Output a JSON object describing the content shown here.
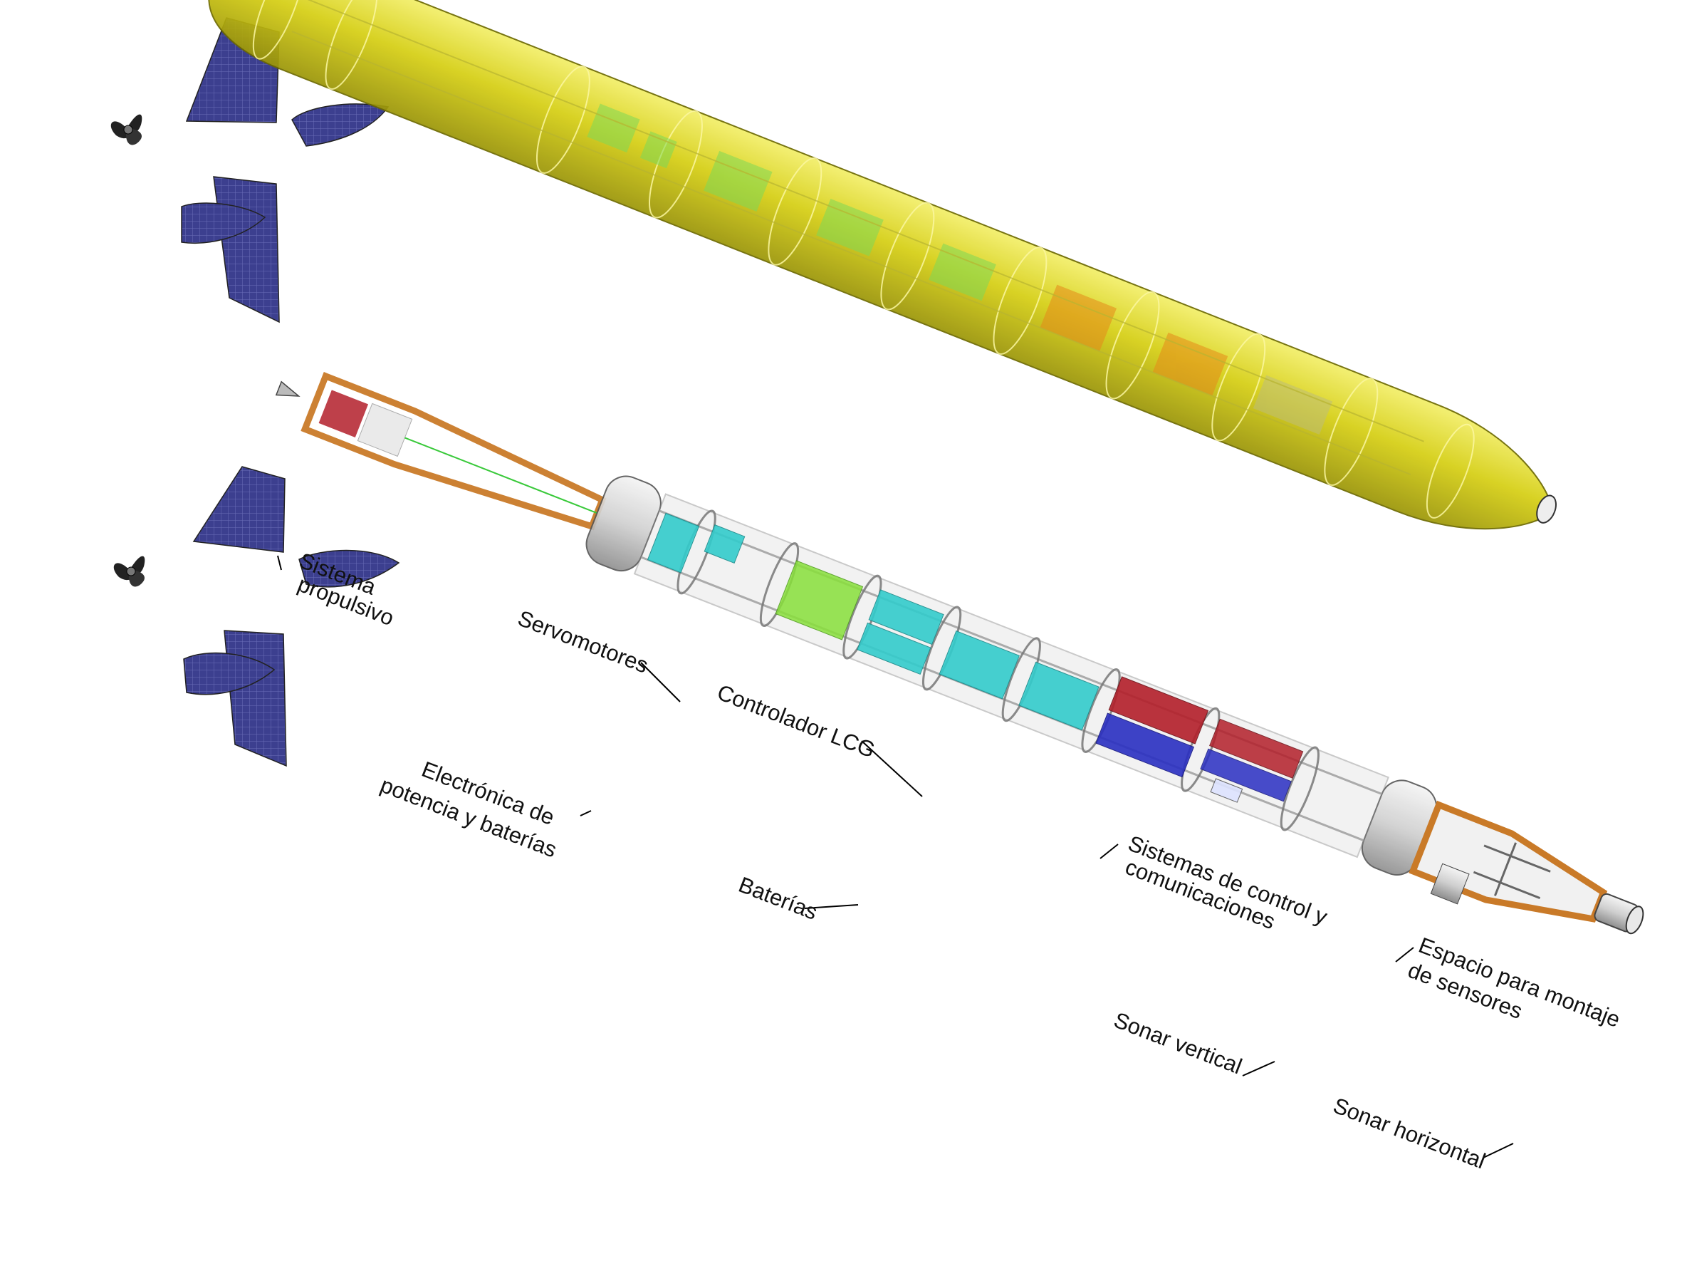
{
  "labels": {
    "propulsion_line1": "Sistema",
    "propulsion_line2": "propulsivo",
    "servomotors": "Servomotores",
    "lcg_controller": "Controlador LCG",
    "power_line1": "Electrónica de",
    "power_line2": "potencia y baterías",
    "batteries": "Baterías",
    "control_line1": "Sistemas de control y",
    "control_line2": "comunicaciones",
    "sensor_space_line1": "Espacio para montaje",
    "sensor_space_line2": "de sensores",
    "sonar_vertical": "Sonar vertical",
    "sonar_horizontal": "Sonar horizontal"
  },
  "colors": {
    "hull_yellow": "#d8d21a",
    "fin_blue": "#3c3f8f",
    "frame_orange": "#c97a28",
    "module_cyan": "#33cccc",
    "module_green": "#88e03a",
    "module_red": "#b31f2a",
    "module_blue": "#2a2fc2",
    "hull_grey": "#d6d6d6"
  },
  "icons": {
    "propeller": "propeller-icon"
  }
}
